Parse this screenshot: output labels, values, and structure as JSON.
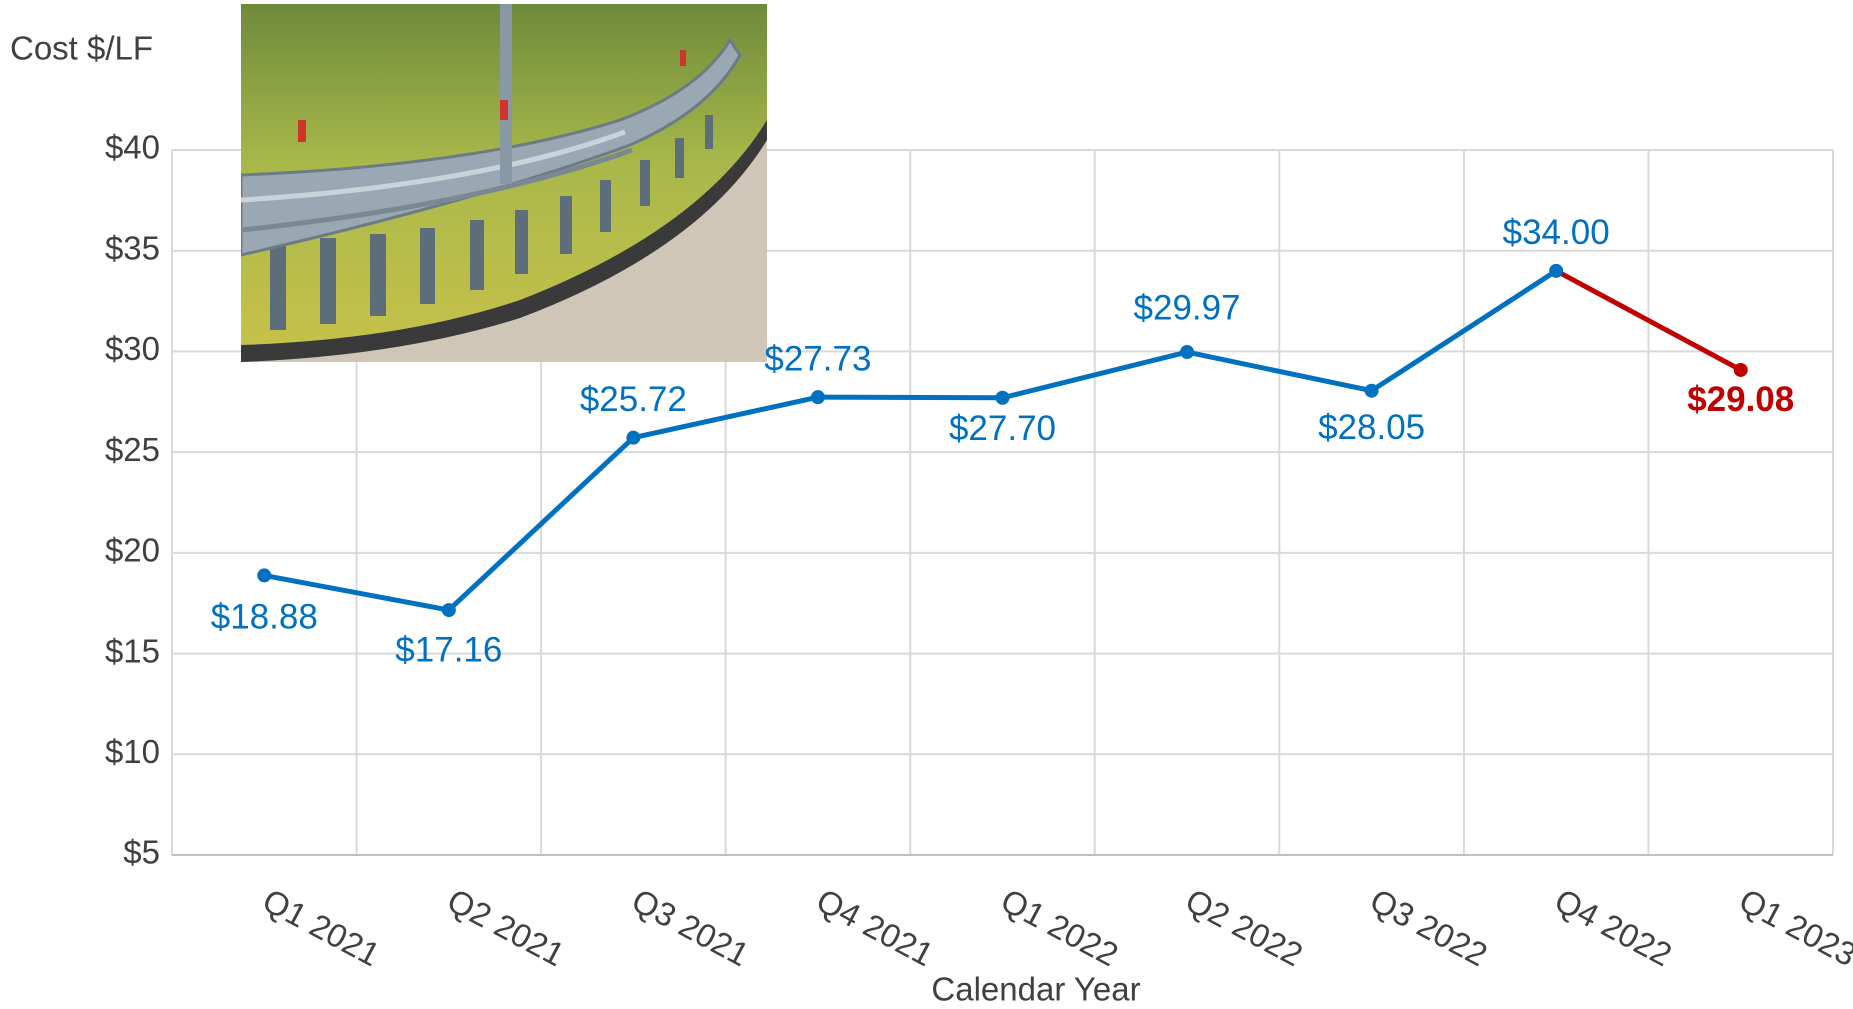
{
  "chart_data": {
    "type": "line",
    "y_axis_title": "Cost $/LF",
    "x_axis_title": "Calendar Year",
    "categories": [
      "Q1 2021",
      "Q2 2021",
      "Q3 2021",
      "Q4 2021",
      "Q1 2022",
      "Q2 2022",
      "Q3 2022",
      "Q4 2022",
      "Q1 2023"
    ],
    "values": [
      18.88,
      17.16,
      25.72,
      27.73,
      27.7,
      29.97,
      28.05,
      34.0,
      29.08
    ],
    "value_labels": [
      "$18.88",
      "$17.16",
      "$25.72",
      "$27.73",
      "$27.70",
      "$29.97",
      "$28.05",
      "$34.00",
      "$29.08"
    ],
    "point_colors": [
      "#0070c0",
      "#0070c0",
      "#0070c0",
      "#0070c0",
      "#0070c0",
      "#0070c0",
      "#0070c0",
      "#0070c0",
      "#c00000"
    ],
    "ylim": [
      5,
      40
    ],
    "yticks": [
      {
        "value": 5,
        "label": "$5"
      },
      {
        "value": 10,
        "label": "$10"
      },
      {
        "value": 15,
        "label": "$15"
      },
      {
        "value": 20,
        "label": "$20"
      },
      {
        "value": 25,
        "label": "$25"
      },
      {
        "value": 30,
        "label": "$30"
      },
      {
        "value": 35,
        "label": "$35"
      },
      {
        "value": 40,
        "label": "$40"
      }
    ],
    "grid": true
  }
}
